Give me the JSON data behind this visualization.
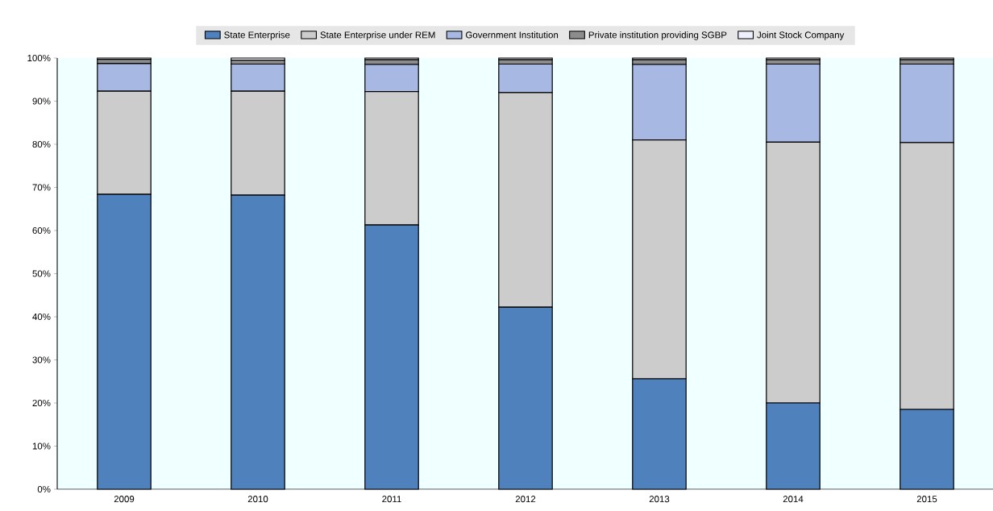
{
  "chart_data": {
    "type": "bar",
    "stacked": true,
    "legend": "top",
    "grid": false,
    "categories": [
      "2009",
      "2010",
      "2011",
      "2012",
      "2013",
      "2014",
      "2015"
    ],
    "series": [
      {
        "name": "State Enterprise",
        "color": "#4f81bd",
        "values": [
          68.4,
          68.2,
          61.3,
          42.2,
          25.6,
          20.0,
          18.5
        ]
      },
      {
        "name": "State Enterprise under REM",
        "color": "#cccccc",
        "values": [
          23.9,
          24.1,
          30.9,
          49.8,
          55.4,
          60.5,
          61.9
        ]
      },
      {
        "name": "Government Institution",
        "color": "#a7b8e2",
        "values": [
          6.4,
          6.3,
          6.3,
          6.6,
          17.5,
          18.1,
          18.2
        ]
      },
      {
        "name": "Private institution providing SGBP",
        "color": "#8c8c8c",
        "values": [
          1.0,
          0.9,
          1.1,
          1.0,
          1.1,
          1.0,
          1.0
        ]
      },
      {
        "name": "Joint Stock Company",
        "color": "#eef0fc",
        "values": [
          0.3,
          0.5,
          0.4,
          0.4,
          0.4,
          0.4,
          0.4
        ]
      }
    ],
    "ylim": [
      0,
      100
    ],
    "yticks": [
      {
        "value": 0,
        "label": "0%"
      },
      {
        "value": 10,
        "label": "10%"
      },
      {
        "value": 20,
        "label": "20%"
      },
      {
        "value": 30,
        "label": "30%"
      },
      {
        "value": 40,
        "label": "40%"
      },
      {
        "value": 50,
        "label": "50%"
      },
      {
        "value": 60,
        "label": "60%"
      },
      {
        "value": 70,
        "label": "70%"
      },
      {
        "value": 80,
        "label": "80%"
      },
      {
        "value": 90,
        "label": "90%"
      },
      {
        "value": 100,
        "label": "100%"
      }
    ]
  }
}
